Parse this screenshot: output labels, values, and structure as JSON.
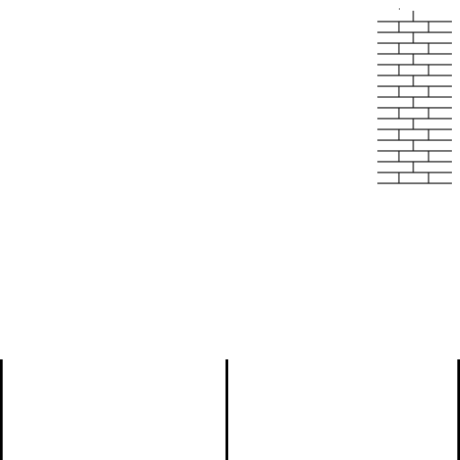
{
  "colors": {
    "background": "#ffffff",
    "brick_line": "#111111",
    "divider": "#000000"
  },
  "brick_wall": {
    "course_count": 16,
    "icon": "brick-wall-segment"
  },
  "bottom_panel": {
    "divider_count": 3
  }
}
